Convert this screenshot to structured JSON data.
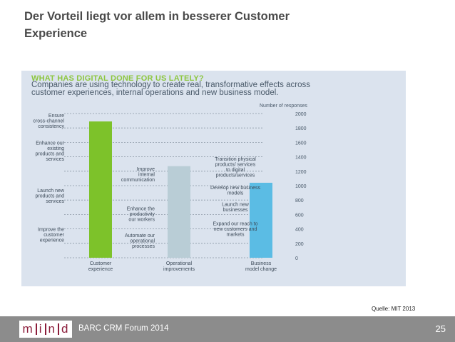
{
  "slide": {
    "title": "Der Vorteil liegt vor allem in besserer Customer Experience",
    "source": "Quelle: MIT 2013"
  },
  "footer": {
    "brand": "m|i|n|d",
    "label": "BARC CRM Forum 2014",
    "page": "25"
  },
  "chart_data": {
    "type": "bar",
    "title": "WHAT HAS DIGITAL DONE FOR US LATELY?",
    "subtitle": "Companies are using technology to create real, transformative effects across customer experiences, internal operations and new business model.",
    "ylabel": "Number of responses",
    "ylim": [
      0,
      2000
    ],
    "yticks": [
      0,
      200,
      400,
      600,
      800,
      1000,
      1200,
      1400,
      1600,
      1800,
      2000
    ],
    "grid": true,
    "categories": [
      "Customer experience",
      "Operational improvements",
      "Business model change"
    ],
    "values": [
      1890,
      1270,
      1040
    ],
    "colors": [
      "#7dc22a",
      "#b9cdd6",
      "#5bbce4"
    ],
    "left_labels": [
      {
        "text": "Ensure cross-channel consistency",
        "value": 1870
      },
      {
        "text": "Enhance our existing products and services",
        "value": 1450
      },
      {
        "text": "Launch new products and services",
        "value": 830
      },
      {
        "text": "Improve the customer experience",
        "value": 290
      }
    ],
    "mid_labels": [
      {
        "text": "Improve internal communication",
        "value": 1130
      },
      {
        "text": "Enhance the productivity our workers",
        "value": 580
      },
      {
        "text": "Automate our operational processes",
        "value": 210
      }
    ],
    "right_labels": [
      {
        "text": "Transition physical products/ services to digital products/services",
        "value": 1230
      },
      {
        "text": "Develop new business models",
        "value": 910
      },
      {
        "text": "Launch new businesses",
        "value": 680
      },
      {
        "text": "Expand our reach to new customers and markets",
        "value": 370
      }
    ]
  }
}
